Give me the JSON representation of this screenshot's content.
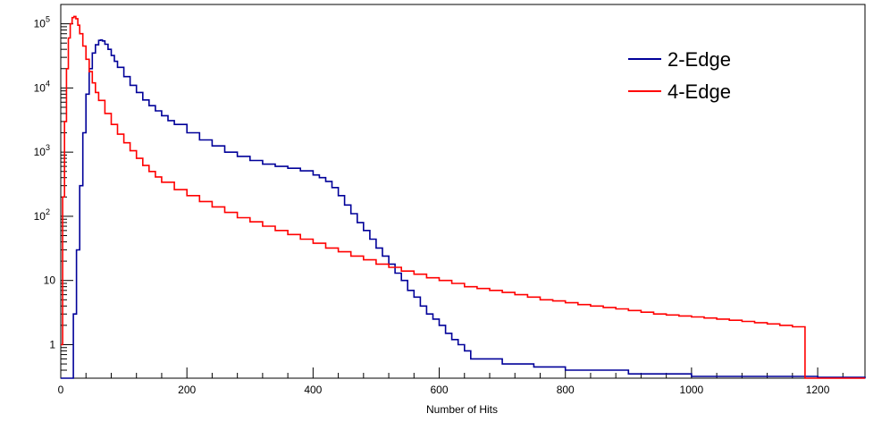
{
  "chart_data": {
    "type": "line",
    "title": "",
    "xlabel": "Number of Hits",
    "ylabel": "",
    "xlim": [
      0,
      1275
    ],
    "ylim": [
      0.3,
      200000
    ],
    "yscale": "log",
    "grid": false,
    "legend_position": "top-right",
    "x_ticks": [
      0,
      200,
      400,
      600,
      800,
      1000,
      1200
    ],
    "y_ticks": [
      {
        "value": 1,
        "label": "1"
      },
      {
        "value": 10,
        "label": "10"
      },
      {
        "value": 100,
        "label": "10",
        "exp": "2"
      },
      {
        "value": 1000,
        "label": "10",
        "exp": "3"
      },
      {
        "value": 10000,
        "label": "10",
        "exp": "4"
      },
      {
        "value": 100000,
        "label": "10",
        "exp": "5"
      }
    ],
    "series": [
      {
        "name": "2-Edge",
        "color": "#000099",
        "x": [
          0,
          10,
          20,
          25,
          30,
          35,
          40,
          45,
          50,
          55,
          60,
          63,
          66,
          70,
          75,
          80,
          85,
          90,
          100,
          110,
          120,
          130,
          140,
          150,
          160,
          170,
          180,
          200,
          220,
          240,
          260,
          280,
          300,
          320,
          340,
          360,
          380,
          400,
          410,
          420,
          430,
          440,
          450,
          460,
          470,
          480,
          490,
          500,
          510,
          520,
          530,
          540,
          550,
          560,
          570,
          580,
          590,
          600,
          610,
          620,
          630,
          640,
          650,
          700,
          750,
          800,
          850,
          900,
          950,
          1000,
          1100,
          1200,
          1275
        ],
        "y": [
          0.3,
          0.3,
          3,
          30,
          300,
          2000,
          8000,
          20000,
          35000,
          47000,
          55000,
          56000,
          54000,
          48000,
          40000,
          32000,
          26000,
          21000,
          15000,
          11000,
          8500,
          6500,
          5300,
          4400,
          3700,
          3100,
          2700,
          2000,
          1550,
          1250,
          1000,
          860,
          740,
          650,
          600,
          560,
          510,
          440,
          400,
          350,
          280,
          210,
          150,
          110,
          80,
          60,
          44,
          32,
          24,
          18,
          13,
          10,
          7,
          5.5,
          4,
          3,
          2.5,
          2,
          1.5,
          1.2,
          1,
          0.8,
          0.6,
          0.5,
          0.45,
          0.4,
          0.4,
          0.35,
          0.35,
          0.32,
          0.32,
          0.31,
          0.3
        ]
      },
      {
        "name": "4-Edge",
        "color": "#ff0000",
        "x": [
          0,
          3,
          6,
          9,
          12,
          15,
          18,
          21,
          24,
          27,
          30,
          35,
          40,
          45,
          50,
          55,
          60,
          70,
          80,
          90,
          100,
          110,
          120,
          130,
          140,
          150,
          160,
          180,
          200,
          220,
          240,
          260,
          280,
          300,
          320,
          340,
          360,
          380,
          400,
          420,
          440,
          460,
          480,
          500,
          520,
          540,
          560,
          580,
          600,
          620,
          640,
          660,
          680,
          700,
          720,
          740,
          760,
          780,
          800,
          820,
          840,
          860,
          880,
          900,
          920,
          940,
          960,
          980,
          1000,
          1020,
          1040,
          1060,
          1080,
          1100,
          1120,
          1140,
          1160,
          1180,
          1275
        ],
        "y": [
          1,
          200,
          3000,
          20000,
          60000,
          100000,
          125000,
          130000,
          120000,
          95000,
          70000,
          45000,
          28000,
          18000,
          12000,
          8500,
          6400,
          4000,
          2700,
          1900,
          1400,
          1050,
          800,
          620,
          500,
          410,
          340,
          260,
          210,
          170,
          140,
          115,
          95,
          82,
          70,
          60,
          52,
          44,
          38,
          32,
          28,
          24,
          21,
          18,
          16,
          14,
          12.5,
          11,
          10,
          9,
          8,
          7.5,
          7,
          6.5,
          6,
          5.5,
          5,
          4.8,
          4.5,
          4.2,
          4,
          3.8,
          3.6,
          3.4,
          3.2,
          3,
          2.9,
          2.8,
          2.7,
          2.6,
          2.5,
          2.4,
          2.3,
          2.2,
          2.1,
          2.0,
          1.9,
          0.3,
          0.3
        ]
      }
    ]
  }
}
